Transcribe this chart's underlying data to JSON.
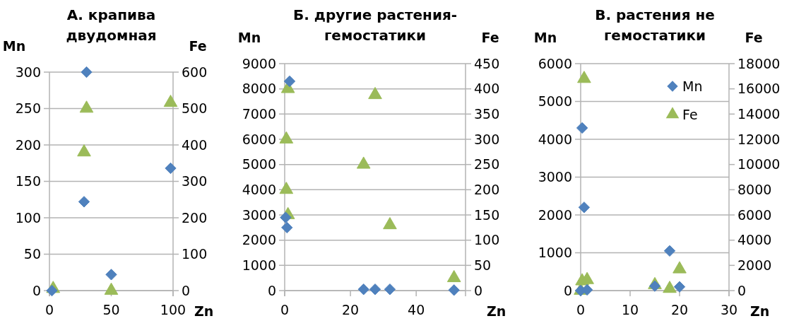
{
  "chart_data": [
    {
      "type": "scatter",
      "title": "А. крапива двудомная",
      "xlabel": "Zn",
      "ylabel": "Mn",
      "y2label": "Fe",
      "xlim": [
        0,
        100
      ],
      "xticks": [
        0,
        50,
        100
      ],
      "ylim": [
        0,
        300
      ],
      "yticks": [
        0,
        50,
        100,
        150,
        200,
        250,
        300
      ],
      "y2lim": [
        0,
        600
      ],
      "y2ticks": [
        0,
        100,
        200,
        300,
        400,
        500,
        600
      ],
      "grid": "y",
      "legend": false,
      "series": [
        {
          "color": "#4f81bd",
          "marker": "diamond",
          "x": [
            2,
            28,
            30,
            50,
            98
          ],
          "values": [
            0,
            122,
            300,
            22,
            168
          ]
        },
        {
          "color": "#9bbb59",
          "marker": "triangle",
          "axis": "y2",
          "x": [
            3,
            28,
            30,
            50,
            98
          ],
          "values": [
            5,
            380,
            500,
            0,
            516
          ]
        }
      ]
    },
    {
      "type": "scatter",
      "title": "Б. другие растения-гемостатики",
      "xlabel": "Zn",
      "ylabel": "Mn",
      "y2label": "Fe",
      "xlim": [
        0,
        55
      ],
      "xticks": [
        0,
        20,
        40
      ],
      "ylim": [
        0,
        9000
      ],
      "yticks": [
        0,
        1000,
        2000,
        3000,
        4000,
        5000,
        6000,
        7000,
        8000,
        9000
      ],
      "y2lim": [
        0,
        450
      ],
      "y2ticks": [
        0,
        50,
        100,
        150,
        200,
        250,
        300,
        350,
        400,
        450
      ],
      "grid": "y",
      "legend": false,
      "series": [
        {
          "color": "#4f81bd",
          "marker": "diamond",
          "x": [
            1.5,
            0.3,
            0.7,
            24,
            27.5,
            32,
            51.5
          ],
          "values": [
            8300,
            2900,
            2500,
            50,
            50,
            50,
            20
          ]
        },
        {
          "color": "#9bbb59",
          "marker": "triangle",
          "axis": "y2",
          "x": [
            1,
            0.5,
            0.5,
            1,
            24,
            27.5,
            32,
            51.5
          ],
          "values": [
            400,
            300,
            200,
            150,
            250,
            388,
            130,
            25
          ]
        }
      ]
    },
    {
      "type": "scatter",
      "title": "В. растения не гемостатики",
      "xlabel": "Zn",
      "ylabel": "Mn",
      "y2label": "Fe",
      "xlim": [
        0,
        30
      ],
      "xticks": [
        0,
        10,
        20,
        30
      ],
      "ylim": [
        0,
        6000
      ],
      "yticks": [
        0,
        1000,
        2000,
        3000,
        4000,
        5000,
        6000
      ],
      "y2lim": [
        0,
        18000
      ],
      "y2ticks": [
        0,
        2000,
        4000,
        6000,
        8000,
        10000,
        12000,
        14000,
        16000,
        18000
      ],
      "grid": "y",
      "legend": "top right",
      "series": [
        {
          "name": "Mn",
          "color": "#4f81bd",
          "marker": "diamond",
          "x": [
            0.3,
            0.7,
            0,
            1.3,
            15,
            18,
            20
          ],
          "values": [
            4300,
            2200,
            0,
            20,
            120,
            1050,
            100
          ]
        },
        {
          "name": "Fe",
          "color": "#9bbb59",
          "marker": "triangle",
          "axis": "y2",
          "x": [
            0.7,
            0.3,
            1.3,
            0,
            15,
            18,
            20
          ],
          "values": [
            16800,
            750,
            850,
            0,
            450,
            150,
            1700
          ]
        }
      ]
    }
  ]
}
